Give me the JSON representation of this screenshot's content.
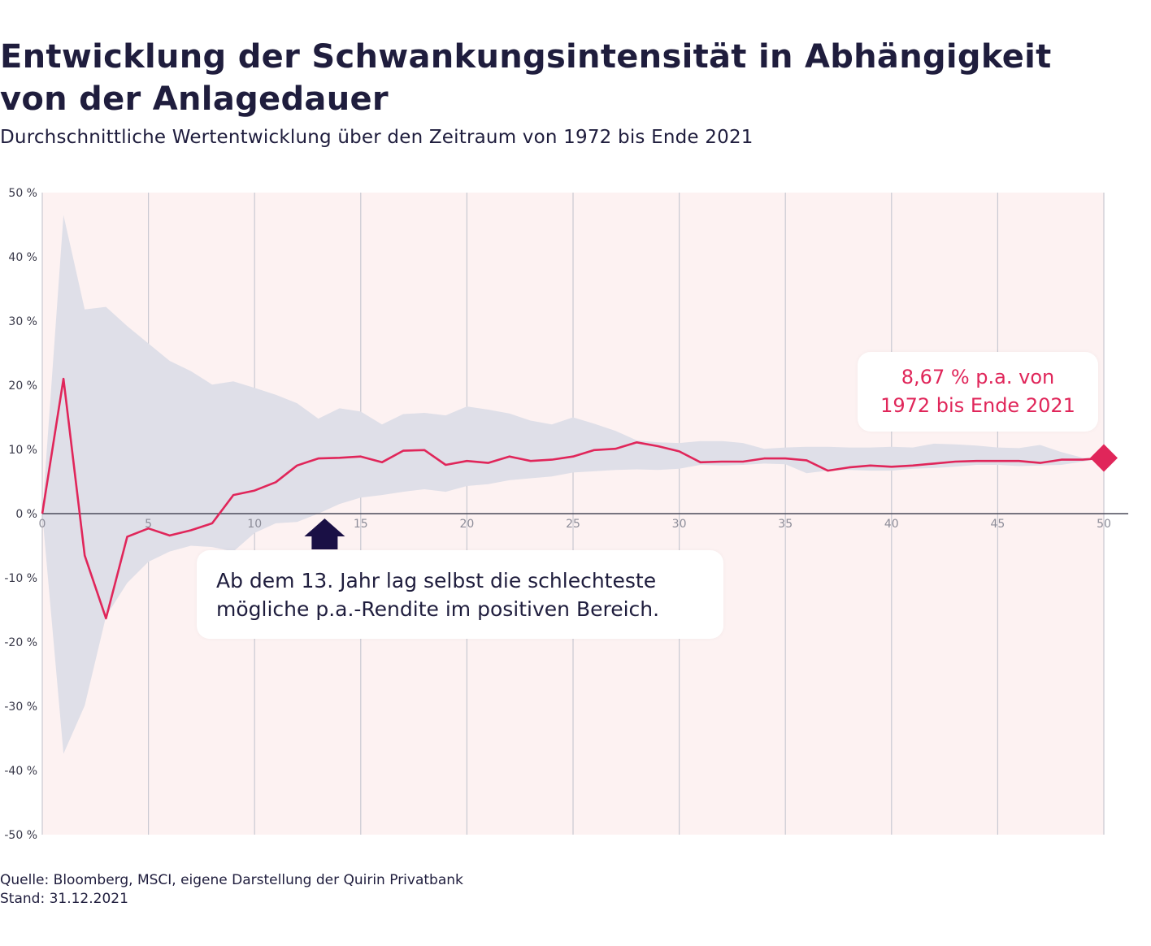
{
  "title_line1": "Entwicklung der Schwankungsintensität in Abhängigkeit",
  "title_line2": "von der Anlagedauer",
  "subtitle": "Durchschnittliche Wertentwicklung über den Zeitraum von 1972 bis Ende 2021",
  "annotations": {
    "end_value_line1": "8,67 % p.a. von",
    "end_value_line2": "1972 bis Ende 2021",
    "year13_line1": "Ab dem 13. Jahr lag selbst die schlechteste",
    "year13_line2": "mögliche p.a.-Rendite im positiven Bereich."
  },
  "footer": {
    "source": "Quelle: Bloomberg, MSCI, eigene Darstellung der Quirin Privatbank",
    "date": "Stand: 31.12.2021"
  },
  "colors": {
    "line": "#e0265a",
    "band": "#dfdfe8",
    "plot_background": "#fdf2f2",
    "arrow": "#1a1045"
  },
  "chart_data": {
    "type": "area",
    "xlim": [
      0,
      50
    ],
    "ylim": [
      -50,
      50
    ],
    "x_ticks": [
      "0",
      "5",
      "10",
      "15",
      "20",
      "25",
      "30",
      "35",
      "40",
      "45",
      "50"
    ],
    "y_ticks": [
      "50 %",
      "40 %",
      "30 %",
      "20 %",
      "10 %",
      "0 %",
      "-10 %",
      "-20 %",
      "-30 %",
      "-40 %",
      "-50 %"
    ],
    "grid": "vertical",
    "x": [
      0,
      1,
      2,
      3,
      4,
      5,
      6,
      7,
      8,
      9,
      10,
      11,
      12,
      13,
      14,
      15,
      16,
      17,
      18,
      19,
      20,
      21,
      22,
      23,
      24,
      25,
      26,
      27,
      28,
      29,
      30,
      31,
      32,
      33,
      34,
      35,
      36,
      37,
      38,
      39,
      40,
      41,
      42,
      43,
      44,
      45,
      46,
      47,
      48,
      49,
      50
    ],
    "series": [
      {
        "role": "average",
        "values": [
          0,
          21,
          -6.5,
          -16.3,
          -3.6,
          -2.3,
          -3.4,
          -2.6,
          -1.5,
          2.9,
          3.6,
          4.9,
          7.5,
          8.6,
          8.7,
          8.9,
          8.0,
          9.8,
          9.9,
          7.6,
          8.2,
          7.9,
          8.9,
          8.2,
          8.4,
          8.9,
          9.9,
          10.1,
          11.1,
          10.5,
          9.7,
          8.0,
          8.1,
          8.1,
          8.6,
          8.6,
          8.3,
          6.7,
          7.2,
          7.5,
          7.3,
          7.5,
          7.8,
          8.1,
          8.2,
          8.2,
          8.2,
          7.9,
          8.4,
          8.4,
          8.67
        ]
      },
      {
        "role": "best",
        "values": [
          0,
          46.5,
          31.8,
          32.2,
          29.2,
          26.5,
          23.8,
          22.2,
          20.1,
          20.6,
          19.6,
          18.5,
          17.2,
          14.8,
          16.4,
          15.9,
          13.9,
          15.5,
          15.7,
          15.3,
          16.7,
          16.2,
          15.6,
          14.5,
          13.9,
          15.0,
          14.0,
          12.9,
          11.4,
          11.1,
          11.0,
          11.3,
          11.3,
          11.0,
          10.1,
          10.3,
          10.4,
          10.4,
          10.3,
          10.3,
          10.4,
          10.3,
          10.9,
          10.8,
          10.6,
          10.3,
          10.2,
          10.7,
          9.6,
          8.7,
          8.67
        ]
      },
      {
        "role": "worst",
        "values": [
          0,
          -37.4,
          -29.9,
          -16.0,
          -10.8,
          -7.5,
          -5.9,
          -5.0,
          -5.2,
          -5.9,
          -3.0,
          -1.5,
          -1.3,
          0.0,
          1.5,
          2.5,
          2.9,
          3.4,
          3.8,
          3.4,
          4.3,
          4.6,
          5.2,
          5.5,
          5.8,
          6.4,
          6.6,
          6.8,
          6.9,
          6.8,
          7.0,
          7.6,
          7.5,
          7.6,
          7.8,
          7.7,
          6.3,
          6.7,
          6.8,
          6.7,
          6.7,
          7.0,
          7.1,
          7.3,
          7.6,
          7.6,
          7.4,
          7.5,
          7.6,
          8.1,
          8.67
        ]
      }
    ]
  }
}
